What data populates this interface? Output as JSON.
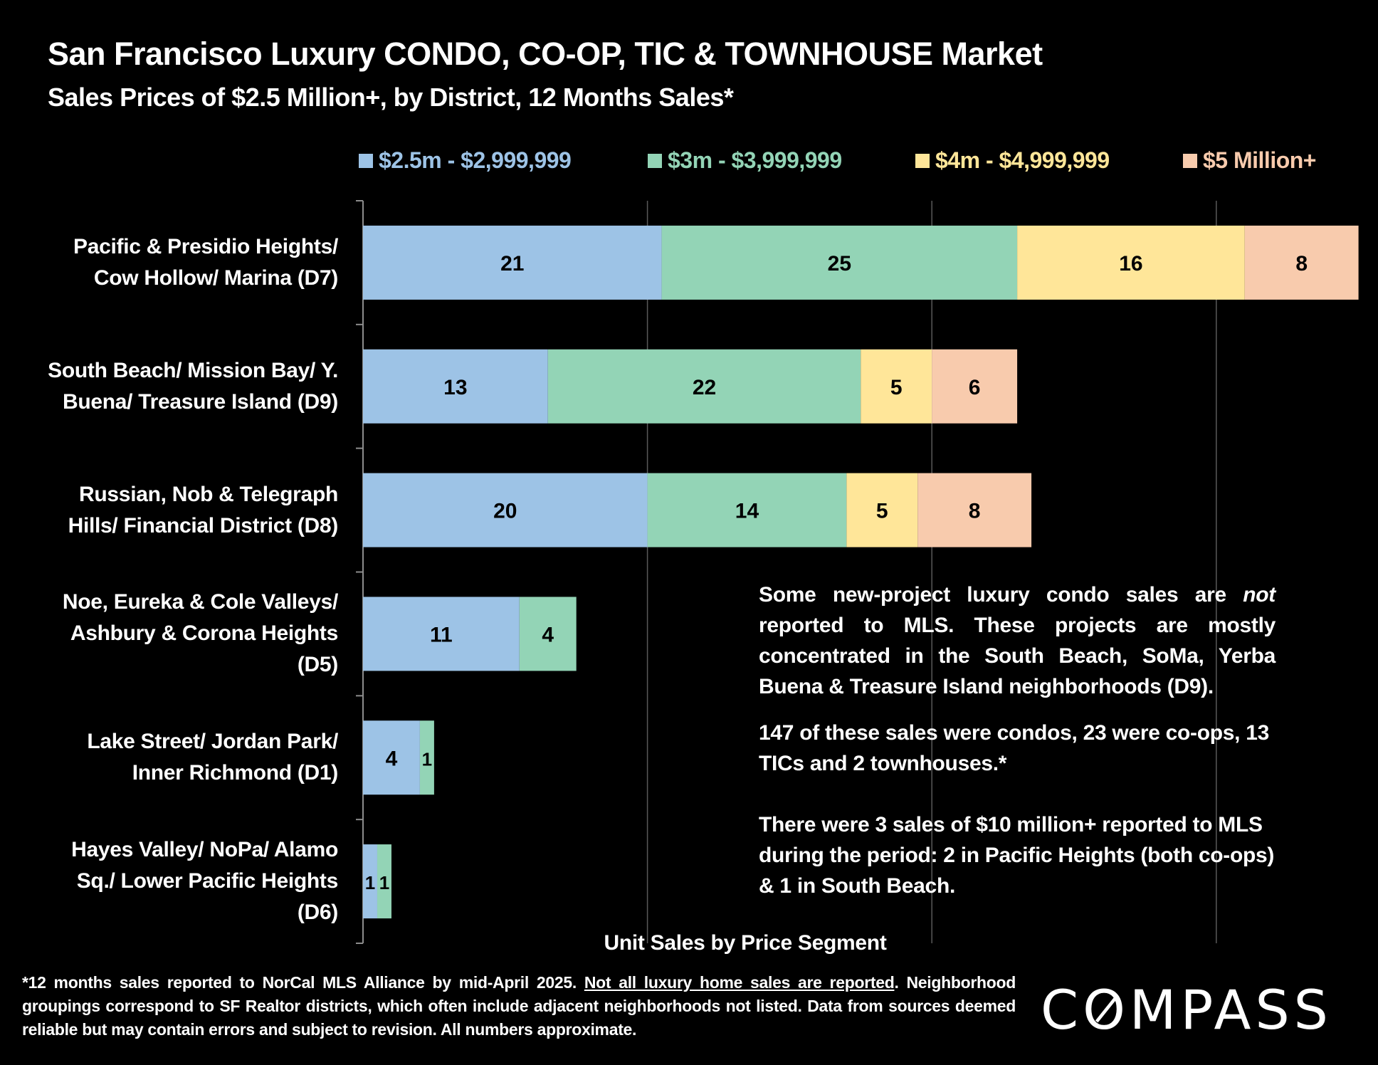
{
  "header": {
    "title": "San Francisco Luxury CONDO, CO-OP, TIC & TOWNHOUSE Market",
    "subtitle": "Sales Prices of $2.5 Million+, by District, 12 Months Sales*"
  },
  "chart_data": {
    "type": "bar",
    "orientation": "horizontal",
    "stacked": true,
    "title": "",
    "xlabel": "Unit Sales by Price Segment",
    "ylabel": "",
    "xlim": [
      0,
      70
    ],
    "grid": true,
    "gridlines": [
      20,
      40,
      60
    ],
    "legend_position": "top",
    "categories": [
      "Pacific & Presidio Heights/ Cow Hollow/ Marina (D7)",
      "South Beach/ Mission Bay/ Y. Buena/ Treasure Island (D9)",
      "Russian, Nob & Telegraph Hills/ Financial District (D8)",
      "Noe, Eureka & Cole Valleys/ Ashbury & Corona Heights (D5)",
      "Lake Street/ Jordan Park/ Inner Richmond (D1)",
      "Hayes Valley/ NoPa/ Alamo Sq./ Lower Pacific Heights (D6)"
    ],
    "category_lines": [
      [
        "Pacific & Presidio Heights/",
        "Cow Hollow/ Marina (D7)"
      ],
      [
        "South Beach/ Mission Bay/ Y.",
        "Buena/ Treasure Island (D9)"
      ],
      [
        "Russian, Nob & Telegraph",
        "Hills/ Financial District (D8)"
      ],
      [
        "Noe, Eureka & Cole Valleys/",
        "Ashbury & Corona Heights",
        "(D5)"
      ],
      [
        "Lake Street/ Jordan Park/",
        "Inner Richmond (D1)"
      ],
      [
        "Hayes Valley/ NoPa/ Alamo",
        "Sq./ Lower Pacific Heights",
        "(D6)"
      ]
    ],
    "series": [
      {
        "name": "$2.5m - $2,999,999",
        "color": "#9dc3e6",
        "values": [
          21,
          13,
          20,
          11,
          4,
          1
        ]
      },
      {
        "name": "$3m - $3,999,999",
        "color": "#93d4b6",
        "values": [
          25,
          22,
          14,
          4,
          1,
          1
        ]
      },
      {
        "name": "$4m - $4,999,999",
        "color": "#ffe699",
        "values": [
          16,
          5,
          5,
          0,
          0,
          0
        ]
      },
      {
        "name": "$5 Million+",
        "color": "#f8cbad",
        "values": [
          8,
          6,
          8,
          0,
          0,
          0
        ]
      }
    ]
  },
  "notes": {
    "p1_before": "Some new-project luxury condo sales are ",
    "p1_em": "not",
    "p1_after": " reported to MLS. These projects are mostly concentrated in the South Beach, SoMa, Yerba Buena & Treasure Island neighborhoods (D9).",
    "p2": "147 of these sales were condos, 23 were co-ops, 13 TICs and 2 townhouses.*",
    "p3": "There were 3 sales of $10 million+ reported to MLS during the period:  2 in Pacific Heights (both co-ops) & 1 in South Beach."
  },
  "footnote": {
    "part1": "*12 months sales reported to NorCal MLS Alliance by mid-April 2025. ",
    "underlined": "Not all luxury home sales are reported",
    "part2": ". Neighborhood groupings correspond to SF Realtor districts, which often include adjacent neighborhoods not listed. Data from sources deemed reliable but may contain errors and subject to revision. All numbers approximate."
  },
  "logo": "COMPASS"
}
